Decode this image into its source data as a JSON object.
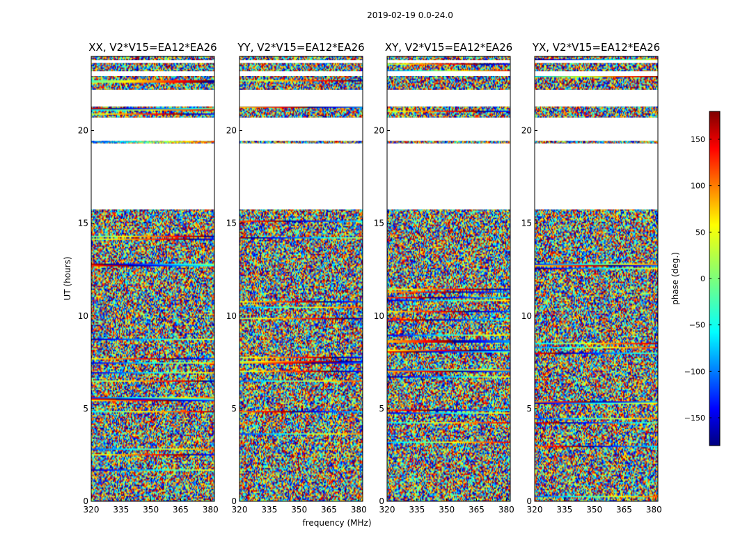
{
  "chart_data": {
    "type": "heatmap",
    "suptitle": "2019-02-19 0.0-24.0",
    "xlabel": "frequency (MHz)",
    "ylabel": "UT (hours)",
    "xlim": [
      320,
      382
    ],
    "ylim": [
      0,
      24
    ],
    "xticks": [
      320,
      335,
      350,
      365,
      380
    ],
    "yticks": [
      0,
      5,
      10,
      15,
      20
    ],
    "panels": [
      {
        "title": "XX, V2*V15=EA12*EA26",
        "polarization": "XX"
      },
      {
        "title": "YY, V2*V15=EA12*EA26",
        "polarization": "YY"
      },
      {
        "title": "XY, V2*V15=EA12*EA26",
        "polarization": "XY"
      },
      {
        "title": "YX, V2*V15=EA12*EA26",
        "polarization": "YX"
      }
    ],
    "flagged_ut_ranges": [
      [
        15.75,
        19.3
      ],
      [
        19.45,
        20.7
      ],
      [
        21.3,
        22.2
      ],
      [
        22.95,
        23.2
      ],
      [
        23.65,
        23.8
      ]
    ],
    "colorbar": {
      "label": "phase (deg.)",
      "min": -180,
      "max": 180,
      "ticks": [
        -150,
        -100,
        -50,
        0,
        50,
        100,
        150
      ],
      "colormap": "jet"
    }
  }
}
